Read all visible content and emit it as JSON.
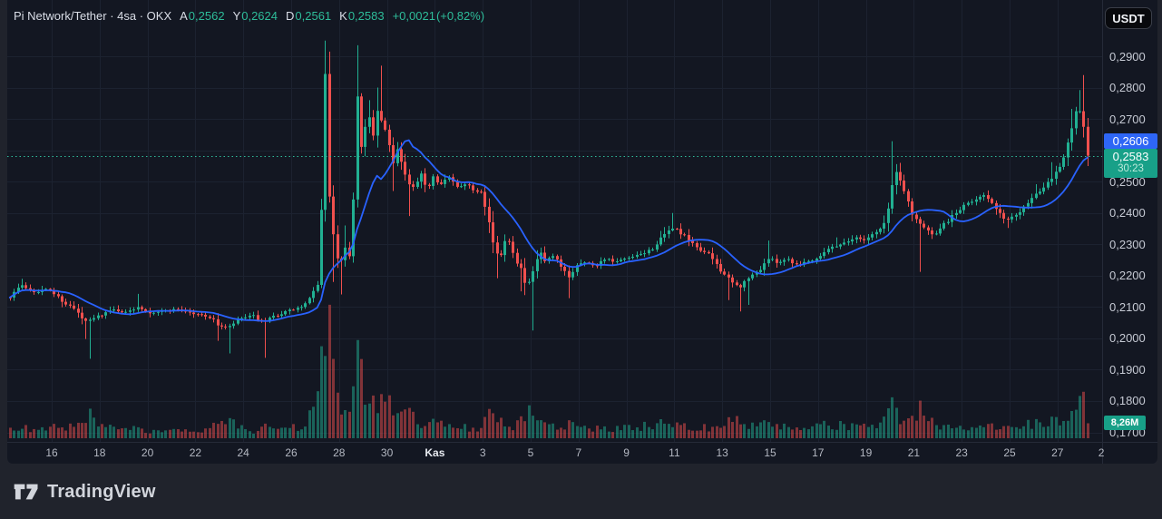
{
  "colors": {
    "page_bg": "#20232c",
    "chart_bg": "#131722",
    "up": "#21b092",
    "down": "#f0504e",
    "ma": "#2962ff",
    "dotted": "#2fbc9b",
    "grid": "#1c2230",
    "sep": "#252a38",
    "badge_blue": "#2e66f6",
    "badge_green": "#18a088",
    "axis_text": "#c6cad4",
    "date_text": "#b4b8c2",
    "strong_text": "#e7eaf0",
    "header_text": "#d9dde6",
    "header_teal": "#2ebd9a",
    "countdown_text": "#bdeadb",
    "logo_text": "#d2d5dc"
  },
  "header": {
    "title": "Pi Network/Tether · 4sa · OKX",
    "ohlc": [
      {
        "label": "A",
        "value": "0,2562"
      },
      {
        "label": "Y",
        "value": "0,2624"
      },
      {
        "label": "D",
        "value": "0,2561"
      },
      {
        "label": "K",
        "value": "0,2583"
      }
    ],
    "change": "+0,0021",
    "change_pct": "(+0,82%)"
  },
  "currency_button": {
    "label": "USDT"
  },
  "price_axis": {
    "ticks": [
      {
        "label": "0,2900",
        "price": 0.29
      },
      {
        "label": "0,2800",
        "price": 0.28
      },
      {
        "label": "0,2700",
        "price": 0.27
      },
      {
        "label": "0,2600",
        "price": 0.26,
        "hidden": true
      },
      {
        "label": "0,2500",
        "price": 0.25
      },
      {
        "label": "0,2400",
        "price": 0.24
      },
      {
        "label": "0,2300",
        "price": 0.23
      },
      {
        "label": "0,2200",
        "price": 0.22
      },
      {
        "label": "0,2100",
        "price": 0.21
      },
      {
        "label": "0,2000",
        "price": 0.2
      },
      {
        "label": "0,1900",
        "price": 0.19
      },
      {
        "label": "0,1800",
        "price": 0.18
      },
      {
        "label": "0,1700",
        "price": 0.17
      }
    ],
    "ma_badge": {
      "label": "0,2606",
      "price": 0.2606
    },
    "price_badge": {
      "label": "0,2583",
      "price": 0.2583,
      "countdown": "30:23"
    },
    "volume_badge": {
      "label": "8,26M",
      "volume_m": 8.26
    }
  },
  "time_axis": {
    "labels": [
      {
        "text": "16",
        "day": 16
      },
      {
        "text": "18",
        "day": 18
      },
      {
        "text": "20",
        "day": 20
      },
      {
        "text": "22",
        "day": 22
      },
      {
        "text": "24",
        "day": 24
      },
      {
        "text": "26",
        "day": 26
      },
      {
        "text": "28",
        "day": 28
      },
      {
        "text": "30",
        "day": 30
      },
      {
        "text": "Kas",
        "day": 32,
        "strong": true
      },
      {
        "text": "3",
        "day": 34
      },
      {
        "text": "5",
        "day": 36
      },
      {
        "text": "7",
        "day": 38
      },
      {
        "text": "9",
        "day": 40
      },
      {
        "text": "11",
        "day": 42
      },
      {
        "text": "13",
        "day": 44
      },
      {
        "text": "15",
        "day": 46
      },
      {
        "text": "17",
        "day": 48
      },
      {
        "text": "19",
        "day": 50
      },
      {
        "text": "21",
        "day": 52
      },
      {
        "text": "23",
        "day": 54
      },
      {
        "text": "25",
        "day": 56
      },
      {
        "text": "27",
        "day": 58
      },
      {
        "text": "2",
        "day": 59.83,
        "grid": false
      }
    ]
  },
  "footer": {
    "logo_text": "TradingView"
  },
  "chart_data": {
    "type": "candlestick",
    "symbol": "Pi Network/Tether",
    "exchange": "OKX",
    "interval": "4h",
    "quote": "USDT",
    "title": "PIUSDT 4h candlestick chart with volume and moving average",
    "y_range": [
      0.168,
      0.297
    ],
    "x_axis": "dates Oct 16 - Nov 29 (Kas = November), day index continues past 31 for November",
    "grid": true,
    "legend_position": "none",
    "last_price": 0.2583,
    "ma_period": 14,
    "ma_last": 0.2606,
    "volume_unit": "millions",
    "anchors_format": "[day, close, volumeM, lowWickOrNull, highWickOrNull]",
    "anchors": [
      [
        14.25,
        0.2135,
        5,
        null,
        null
      ],
      [
        14.7,
        0.217,
        6,
        null,
        0.219
      ],
      [
        15.3,
        0.2148,
        4,
        null,
        null
      ],
      [
        15.85,
        0.2158,
        5,
        null,
        null
      ],
      [
        16.4,
        0.2122,
        7,
        null,
        null
      ],
      [
        17.0,
        0.2088,
        6,
        null,
        null
      ],
      [
        17.35,
        0.2052,
        9,
        0.1998,
        null
      ],
      [
        17.6,
        0.2058,
        12,
        0.1935,
        null
      ],
      [
        18.1,
        0.2078,
        6,
        null,
        null
      ],
      [
        18.6,
        0.2092,
        5,
        null,
        null
      ],
      [
        19.1,
        0.2082,
        4,
        null,
        null
      ],
      [
        19.6,
        0.2102,
        6,
        null,
        0.2142
      ],
      [
        20.1,
        0.2082,
        4,
        null,
        null
      ],
      [
        20.7,
        0.2088,
        3.5,
        null,
        null
      ],
      [
        21.3,
        0.2094,
        4,
        null,
        null
      ],
      [
        21.9,
        0.2078,
        3.5,
        null,
        null
      ],
      [
        22.5,
        0.2072,
        4,
        null,
        null
      ],
      [
        22.95,
        0.2042,
        8,
        0.1992,
        null
      ],
      [
        23.35,
        0.2032,
        10,
        0.1952,
        null
      ],
      [
        23.8,
        0.2062,
        6,
        null,
        null
      ],
      [
        24.4,
        0.2072,
        4,
        null,
        null
      ],
      [
        24.85,
        0.2048,
        9,
        0.1938,
        null
      ],
      [
        25.3,
        0.2072,
        5,
        null,
        null
      ],
      [
        25.9,
        0.2088,
        5,
        null,
        null
      ],
      [
        26.5,
        0.2102,
        7,
        null,
        null
      ],
      [
        26.9,
        0.2135,
        14,
        null,
        null
      ],
      [
        27.1,
        0.219,
        25,
        null,
        null
      ],
      [
        27.25,
        0.24,
        48,
        null,
        null
      ],
      [
        27.4,
        0.2885,
        55,
        null,
        0.295
      ],
      [
        27.6,
        0.243,
        60,
        null,
        0.2915
      ],
      [
        27.8,
        0.228,
        30,
        0.218,
        null
      ],
      [
        28.0,
        0.222,
        16,
        0.214,
        null
      ],
      [
        28.2,
        0.23,
        14,
        null,
        0.236
      ],
      [
        28.45,
        0.226,
        12,
        null,
        null
      ],
      [
        28.58,
        0.243,
        22,
        null,
        null
      ],
      [
        28.7,
        0.2865,
        53,
        null,
        0.2935
      ],
      [
        28.88,
        0.259,
        35,
        null,
        null
      ],
      [
        29.05,
        0.266,
        22,
        null,
        null
      ],
      [
        29.25,
        0.27,
        20,
        null,
        0.276
      ],
      [
        29.45,
        0.264,
        18,
        null,
        null
      ],
      [
        29.6,
        0.2725,
        19,
        null,
        0.28
      ],
      [
        29.83,
        0.268,
        22,
        null,
        0.287
      ],
      [
        30.05,
        0.262,
        18,
        null,
        null
      ],
      [
        30.25,
        0.256,
        15,
        0.247,
        null
      ],
      [
        30.45,
        0.2615,
        13,
        null,
        null
      ],
      [
        30.65,
        0.254,
        12,
        null,
        null
      ],
      [
        30.9,
        0.249,
        15,
        0.239,
        null
      ],
      [
        31.15,
        0.2478,
        10,
        null,
        null
      ],
      [
        31.4,
        0.2525,
        9,
        null,
        null
      ],
      [
        31.65,
        0.2472,
        8,
        null,
        null
      ],
      [
        31.9,
        0.252,
        8,
        null,
        null
      ],
      [
        32.2,
        0.2492,
        7,
        null,
        null
      ],
      [
        32.55,
        0.2515,
        7,
        null,
        null
      ],
      [
        32.9,
        0.2482,
        6,
        null,
        null
      ],
      [
        33.3,
        0.2495,
        6,
        null,
        null
      ],
      [
        33.7,
        0.2468,
        6,
        null,
        null
      ],
      [
        34.0,
        0.2478,
        7,
        null,
        null
      ],
      [
        34.2,
        0.2385,
        12,
        null,
        null
      ],
      [
        34.45,
        0.2302,
        11,
        null,
        null
      ],
      [
        34.65,
        0.2242,
        10,
        0.2192,
        null
      ],
      [
        34.95,
        0.2328,
        8,
        null,
        null
      ],
      [
        35.25,
        0.2285,
        7,
        null,
        null
      ],
      [
        35.55,
        0.2225,
        10,
        0.215,
        null
      ],
      [
        35.8,
        0.2165,
        9,
        0.2138,
        null
      ],
      [
        36.0,
        0.218,
        17,
        0.2025,
        null
      ],
      [
        36.35,
        0.2282,
        9,
        null,
        null
      ],
      [
        36.6,
        0.2242,
        7,
        null,
        null
      ],
      [
        36.9,
        0.2262,
        6,
        null,
        null
      ],
      [
        37.2,
        0.2232,
        6,
        null,
        null
      ],
      [
        37.6,
        0.2195,
        8,
        0.2128,
        null
      ],
      [
        37.95,
        0.2242,
        6,
        null,
        null
      ],
      [
        38.3,
        0.2242,
        5,
        null,
        null
      ],
      [
        38.7,
        0.2232,
        5,
        null,
        null
      ],
      [
        39.1,
        0.2255,
        6,
        null,
        null
      ],
      [
        39.5,
        0.2242,
        5,
        null,
        null
      ],
      [
        39.9,
        0.2252,
        6,
        null,
        null
      ],
      [
        40.4,
        0.2262,
        6,
        null,
        null
      ],
      [
        41.0,
        0.2282,
        7,
        null,
        null
      ],
      [
        41.5,
        0.2322,
        8,
        null,
        0.2355
      ],
      [
        41.95,
        0.2355,
        10,
        null,
        0.24
      ],
      [
        42.3,
        0.2332,
        8,
        null,
        null
      ],
      [
        42.7,
        0.2302,
        7,
        null,
        null
      ],
      [
        43.1,
        0.2282,
        6,
        null,
        null
      ],
      [
        43.5,
        0.2262,
        6,
        null,
        null
      ],
      [
        43.9,
        0.2222,
        8,
        null,
        null
      ],
      [
        44.3,
        0.2182,
        9,
        0.2122,
        null
      ],
      [
        44.7,
        0.2162,
        10,
        0.2086,
        null
      ],
      [
        45.1,
        0.2192,
        8,
        0.2107,
        null
      ],
      [
        45.5,
        0.2215,
        7,
        null,
        null
      ],
      [
        45.9,
        0.2255,
        8,
        null,
        0.2312
      ],
      [
        46.3,
        0.2242,
        6,
        null,
        null
      ],
      [
        46.7,
        0.2255,
        6,
        null,
        null
      ],
      [
        47.1,
        0.2235,
        5,
        null,
        null
      ],
      [
        47.5,
        0.2245,
        5,
        null,
        null
      ],
      [
        47.9,
        0.2255,
        6,
        null,
        null
      ],
      [
        48.3,
        0.2282,
        7,
        null,
        null
      ],
      [
        48.7,
        0.2295,
        7,
        null,
        0.2322
      ],
      [
        49.1,
        0.2305,
        7,
        null,
        null
      ],
      [
        49.5,
        0.2322,
        7,
        null,
        null
      ],
      [
        49.9,
        0.2315,
        6,
        null,
        null
      ],
      [
        50.3,
        0.2335,
        7,
        null,
        null
      ],
      [
        50.7,
        0.2355,
        9,
        null,
        0.2392
      ],
      [
        51.0,
        0.2425,
        14,
        null,
        null
      ],
      [
        51.15,
        0.2542,
        20,
        null,
        0.2629
      ],
      [
        51.4,
        0.2512,
        13,
        null,
        0.256
      ],
      [
        51.65,
        0.2455,
        11,
        null,
        null
      ],
      [
        51.9,
        0.2405,
        10,
        null,
        null
      ],
      [
        52.2,
        0.2372,
        17,
        0.2212,
        null
      ],
      [
        52.55,
        0.2342,
        9,
        null,
        null
      ],
      [
        52.9,
        0.2328,
        8,
        null,
        null
      ],
      [
        53.3,
        0.2368,
        7,
        null,
        null
      ],
      [
        53.7,
        0.2398,
        7,
        null,
        null
      ],
      [
        54.1,
        0.2422,
        6,
        null,
        null
      ],
      [
        54.5,
        0.2442,
        6,
        null,
        null
      ],
      [
        54.9,
        0.2462,
        6,
        null,
        null
      ],
      [
        55.2,
        0.2432,
        6,
        null,
        null
      ],
      [
        55.6,
        0.2392,
        7,
        null,
        null
      ],
      [
        55.95,
        0.2378,
        6,
        0.2352,
        null
      ],
      [
        56.3,
        0.2398,
        6,
        null,
        null
      ],
      [
        56.65,
        0.2428,
        7,
        null,
        null
      ],
      [
        57.0,
        0.2455,
        8,
        null,
        0.2492
      ],
      [
        57.35,
        0.2482,
        8,
        null,
        null
      ],
      [
        57.7,
        0.2512,
        9,
        null,
        0.2562
      ],
      [
        57.95,
        0.2538,
        10,
        null,
        null
      ],
      [
        58.2,
        0.2565,
        11,
        null,
        null
      ],
      [
        58.45,
        0.2622,
        13,
        null,
        null
      ],
      [
        58.65,
        0.2688,
        15,
        null,
        0.2732
      ],
      [
        58.85,
        0.2742,
        18,
        null,
        0.2792
      ],
      [
        59.03,
        0.2712,
        22,
        null,
        0.284
      ],
      [
        59.18,
        0.2602,
        20,
        0.2562,
        null
      ],
      [
        59.33,
        0.2583,
        8.26,
        null,
        null
      ]
    ]
  }
}
